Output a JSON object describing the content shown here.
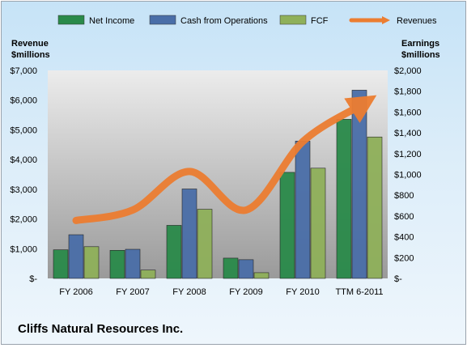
{
  "chart_data": {
    "type": "bar",
    "title": "Cliffs Natural Resources Inc.",
    "categories": [
      "FY 2006",
      "FY 2007",
      "FY 2008",
      "FY 2009",
      "FY 2010",
      "TTM 6-2011"
    ],
    "series": [
      {
        "name": "Net Income",
        "axis": "right",
        "type": "bar",
        "color": "#2a8a4a",
        "values": [
          275,
          270,
          510,
          195,
          1020,
          1530
        ]
      },
      {
        "name": "Cash from Operations",
        "axis": "right",
        "type": "bar",
        "color": "#4a6ea8",
        "values": [
          420,
          280,
          860,
          180,
          1320,
          1810
        ]
      },
      {
        "name": "FCF",
        "axis": "right",
        "type": "bar",
        "color": "#8fb05a",
        "values": [
          305,
          80,
          665,
          55,
          1060,
          1360
        ]
      },
      {
        "name": "Revenues",
        "axis": "left",
        "type": "line",
        "color": "#ec7d31",
        "values": [
          1950,
          2300,
          3600,
          2300,
          4600,
          5800
        ]
      }
    ],
    "left_axis": {
      "label_line1": "Revenue",
      "label_line2": "$millions",
      "min": 0,
      "max": 7000,
      "step": 1000,
      "ticks": [
        "$-",
        "$1,000",
        "$2,000",
        "$3,000",
        "$4,000",
        "$5,000",
        "$6,000",
        "$7,000"
      ]
    },
    "right_axis": {
      "label_line1": "Earnings",
      "label_line2": "$millions",
      "min": 0,
      "max": 2000,
      "step": 200,
      "ticks": [
        "$-",
        "$200",
        "$400",
        "$600",
        "$800",
        "$1,000",
        "$1,200",
        "$1,400",
        "$1,600",
        "$1,800",
        "$2,000"
      ]
    },
    "legend_position": "top",
    "grid": false
  }
}
